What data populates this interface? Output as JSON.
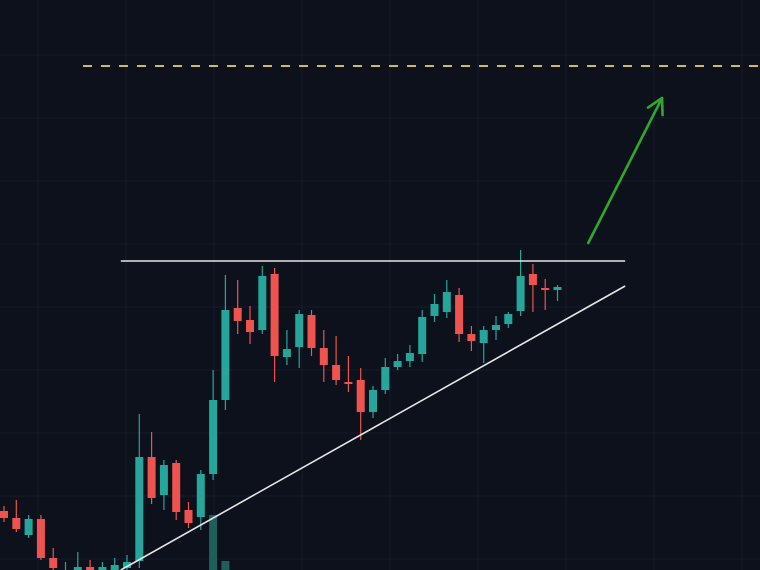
{
  "chart_data": {
    "type": "candlestick",
    "title": "",
    "xlabel": "",
    "ylabel": "",
    "ylim": [
      0,
      570
    ],
    "grid": true,
    "colors": {
      "background": "#0c111c",
      "grid": "#151c2a",
      "up": "#26a69a",
      "down": "#ef5350",
      "target_line": "#d4b85a",
      "trendline": "#e6e6e6",
      "arrow": "#2eaa2a",
      "volume": "#1f5f5a"
    },
    "candles": [
      {
        "t": 1,
        "open": 59,
        "close": 52,
        "high": 64,
        "low": 48
      },
      {
        "t": 2,
        "open": 52,
        "close": 41,
        "high": 70,
        "low": 38
      },
      {
        "t": 3,
        "open": 35,
        "close": 51,
        "high": 55,
        "low": 32
      },
      {
        "t": 4,
        "open": 51,
        "close": 12,
        "high": 55,
        "low": 10
      },
      {
        "t": 5,
        "open": 12,
        "close": 2,
        "high": 22,
        "low": 0
      },
      {
        "t": 6,
        "open": -12,
        "close": -5,
        "high": 8,
        "low": -20
      },
      {
        "t": 7,
        "open": -8,
        "close": 3,
        "high": 18,
        "low": -15
      },
      {
        "t": 8,
        "open": 3,
        "close": -5,
        "high": 10,
        "low": -10
      },
      {
        "t": 9,
        "open": -5,
        "close": 3,
        "high": 8,
        "low": -10
      },
      {
        "t": 10,
        "open": -3,
        "close": 5,
        "high": 12,
        "low": -8
      },
      {
        "t": 11,
        "open": 2,
        "close": 8,
        "high": 15,
        "low": 0
      },
      {
        "t": 12,
        "open": 9,
        "close": 113,
        "high": 156,
        "low": 2
      },
      {
        "t": 13,
        "open": 113,
        "close": 72,
        "high": 138,
        "low": 66
      },
      {
        "t": 14,
        "open": 75,
        "close": 105,
        "high": 110,
        "low": 60
      },
      {
        "t": 15,
        "open": 107,
        "close": 58,
        "high": 110,
        "low": 50
      },
      {
        "t": 16,
        "open": 60,
        "close": 47,
        "high": 68,
        "low": 42
      },
      {
        "t": 17,
        "open": 53,
        "close": 96,
        "high": 100,
        "low": 40
      },
      {
        "t": 18,
        "open": 96,
        "close": 170,
        "high": 200,
        "low": 90
      },
      {
        "t": 19,
        "open": 170,
        "close": 260,
        "high": 295,
        "low": 160
      },
      {
        "t": 20,
        "open": 262,
        "close": 249,
        "high": 290,
        "low": 236
      },
      {
        "t": 21,
        "open": 250,
        "close": 238,
        "high": 264,
        "low": 226
      },
      {
        "t": 22,
        "open": 240,
        "close": 294,
        "high": 304,
        "low": 236
      },
      {
        "t": 23,
        "open": 296,
        "close": 214,
        "high": 302,
        "low": 188
      },
      {
        "t": 24,
        "open": 213,
        "close": 221,
        "high": 240,
        "low": 205
      },
      {
        "t": 25,
        "open": 223,
        "close": 256,
        "high": 260,
        "low": 202
      },
      {
        "t": 26,
        "open": 255,
        "close": 222,
        "high": 260,
        "low": 214
      },
      {
        "t": 27,
        "open": 222,
        "close": 205,
        "high": 240,
        "low": 188
      },
      {
        "t": 28,
        "open": 205,
        "close": 190,
        "high": 234,
        "low": 185
      },
      {
        "t": 29,
        "open": 188,
        "close": 186,
        "high": 214,
        "low": 178
      },
      {
        "t": 30,
        "open": 190,
        "close": 158,
        "high": 202,
        "low": 130
      },
      {
        "t": 31,
        "open": 158,
        "close": 180,
        "high": 184,
        "low": 152
      },
      {
        "t": 32,
        "open": 180,
        "close": 203,
        "high": 212,
        "low": 176
      },
      {
        "t": 33,
        "open": 203,
        "close": 209,
        "high": 216,
        "low": 200
      },
      {
        "t": 34,
        "open": 209,
        "close": 217,
        "high": 225,
        "low": 203
      },
      {
        "t": 35,
        "open": 216,
        "close": 253,
        "high": 260,
        "low": 208
      },
      {
        "t": 36,
        "open": 254,
        "close": 266,
        "high": 276,
        "low": 248
      },
      {
        "t": 37,
        "open": 258,
        "close": 278,
        "high": 290,
        "low": 252
      },
      {
        "t": 38,
        "open": 275,
        "close": 236,
        "high": 282,
        "low": 228
      },
      {
        "t": 39,
        "open": 236,
        "close": 229,
        "high": 244,
        "low": 219
      },
      {
        "t": 40,
        "open": 227,
        "close": 240,
        "high": 244,
        "low": 207
      },
      {
        "t": 41,
        "open": 240,
        "close": 245,
        "high": 254,
        "low": 230
      },
      {
        "t": 42,
        "open": 246,
        "close": 256,
        "high": 258,
        "low": 242
      },
      {
        "t": 43,
        "open": 259,
        "close": 294,
        "high": 320,
        "low": 254
      },
      {
        "t": 44,
        "open": 296,
        "close": 285,
        "high": 306,
        "low": 258
      },
      {
        "t": 45,
        "open": 282,
        "close": 280,
        "high": 291,
        "low": 260
      },
      {
        "t": 46,
        "open": 280,
        "close": 283,
        "high": 285,
        "low": 269
      }
    ],
    "volume": [
      {
        "t": 18,
        "value": 55
      },
      {
        "t": 19,
        "value": 9
      }
    ],
    "annotations": {
      "target_level": 504,
      "resistance_level": 309,
      "resistance_from_t": 10.5,
      "resistance_to_t": 51.5,
      "support_from": {
        "t": 10.5,
        "value": 0
      },
      "support_to": {
        "t": 51.5,
        "value": 284
      },
      "arrow_from": {
        "t": 48.5,
        "value": 327
      },
      "arrow_to": {
        "t": 54.5,
        "value": 472
      }
    }
  }
}
